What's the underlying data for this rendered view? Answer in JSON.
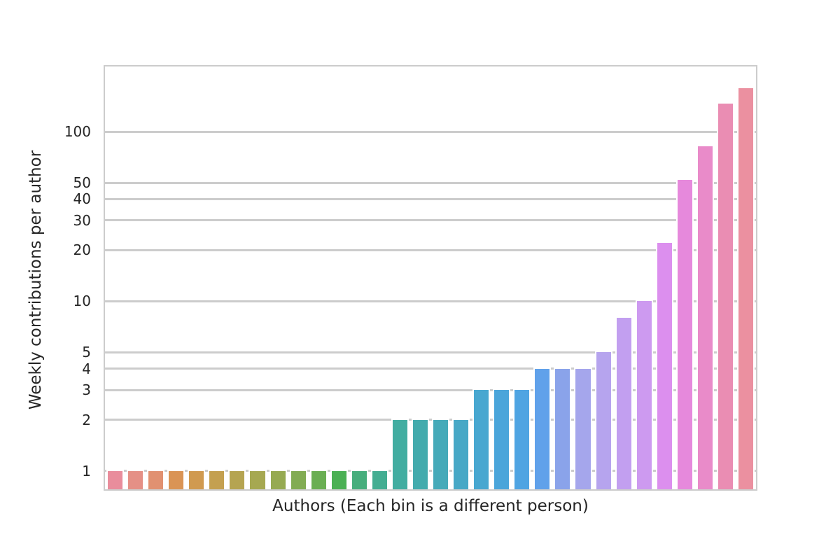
{
  "figure": {
    "background": "#ffffff",
    "text_color": "#262626",
    "grid_color": "#cccccc",
    "spine_color": "#cccccc",
    "bar_edge_color": "#ffffff"
  },
  "chart_data": {
    "type": "bar",
    "title": "",
    "xlabel": "Authors (Each bin is a different person)",
    "ylabel": "Weekly contributions per author",
    "yscale": "log",
    "grid": true,
    "legend_position": "none",
    "ylim": [
      0.78,
      242
    ],
    "yticks": [
      1,
      2,
      3,
      4,
      5,
      10,
      20,
      30,
      40,
      50,
      100
    ],
    "ytick_labels": [
      "1",
      "2",
      "3",
      "4",
      "5",
      "10",
      "20",
      "30",
      "40",
      "50",
      "100"
    ],
    "xtick_labels": [],
    "values": [
      1,
      1,
      1,
      1,
      1,
      1,
      1,
      1,
      1,
      1,
      1,
      1,
      1,
      1,
      2,
      2,
      2,
      2,
      3,
      3,
      3,
      4,
      4,
      4,
      5,
      8,
      10,
      22,
      52,
      82,
      146,
      180
    ],
    "bar_colors": [
      "#e98d9c",
      "#e59086",
      "#e19171",
      "#da9455",
      "#d09a50",
      "#c4a050",
      "#b5a451",
      "#a6a851",
      "#96aa52",
      "#82ac53",
      "#6aae53",
      "#4bb054",
      "#47ae7d",
      "#44ad92",
      "#42ada1",
      "#43abad",
      "#45aab9",
      "#47a8c6",
      "#48a7d0",
      "#4aa5da",
      "#4fa4e2",
      "#60a1ea",
      "#8aa3ea",
      "#a5a6ec",
      "#b6a4ee",
      "#c29ff0",
      "#cd9af0",
      "#dc8fee",
      "#e689dc",
      "#e98bc9",
      "#ea8db3",
      "#eb90a0"
    ]
  }
}
